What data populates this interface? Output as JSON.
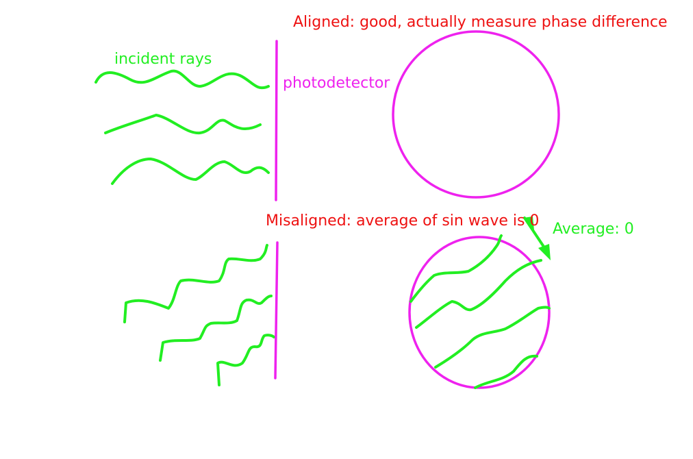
{
  "colors": {
    "wave": "#22ee22",
    "detector": "#ee22ee",
    "annotation": "#ee1111",
    "background": "#ffffff"
  },
  "aligned": {
    "title": "Aligned: good, actually measure phase difference",
    "incident_label": "incident rays",
    "detector_label": "photodetector"
  },
  "misaligned": {
    "title": "Misaligned: average of sin wave is 0",
    "average_label": "Average: 0"
  },
  "icons": [
    "arrow-icon"
  ]
}
